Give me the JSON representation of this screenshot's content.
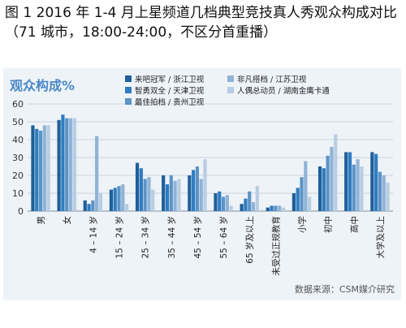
{
  "header": {
    "title": "图 1 2016 年 1-4 月上星频道几档典型竞技真人秀观众构成对比（71 城市，18:00-24:00，不区分首重播）"
  },
  "footer": {
    "source": "数据来源：CSM媒介研究"
  },
  "colors": [
    "#1f5f9a",
    "#2f7cc0",
    "#5d93c5",
    "#8fb3d6",
    "#b8cde2"
  ],
  "chart_data": {
    "type": "bar",
    "title": "观众构成%",
    "xlabel": "",
    "ylabel": "",
    "ylim": [
      0,
      60
    ],
    "yticks": [
      0,
      10,
      20,
      30,
      40,
      50,
      60
    ],
    "grid": true,
    "legend_position": "top-center",
    "categories": [
      "男",
      "女",
      "4 – 14 岁",
      "15 – 24 岁",
      "25 – 34 岁",
      "35 – 44 岁",
      "45 – 54 岁",
      "55 – 64 岁",
      "65 岁及以上",
      "未受过正规教育",
      "小学",
      "初中",
      "高中",
      "大学及以上"
    ],
    "series": [
      {
        "name": "来吧冠军 / 浙江卫视",
        "values": [
          48,
          51,
          6,
          12,
          27,
          20,
          20,
          10,
          4,
          2,
          10,
          25,
          33,
          33
        ]
      },
      {
        "name": "智勇双全 / 天津卫视",
        "values": [
          46,
          54,
          4,
          13,
          24,
          15,
          23,
          11,
          7,
          3,
          13,
          24,
          33,
          32
        ]
      },
      {
        "name": "最佳拍档 / 贵州卫视",
        "values": [
          45,
          52,
          6,
          14,
          18,
          20,
          25,
          8,
          11,
          3,
          19,
          31,
          26,
          22
        ]
      },
      {
        "name": "非凡搭档 / 江苏卫视",
        "values": [
          48,
          52,
          42,
          15,
          19,
          17,
          18,
          9,
          5,
          3,
          28,
          36,
          29,
          20
        ]
      },
      {
        "name": "人偶总动员 / 湖南金鹰卡通",
        "values": [
          48,
          52,
          10,
          4,
          12,
          18,
          29,
          3,
          14,
          2,
          8,
          43,
          25,
          16
        ]
      }
    ]
  }
}
